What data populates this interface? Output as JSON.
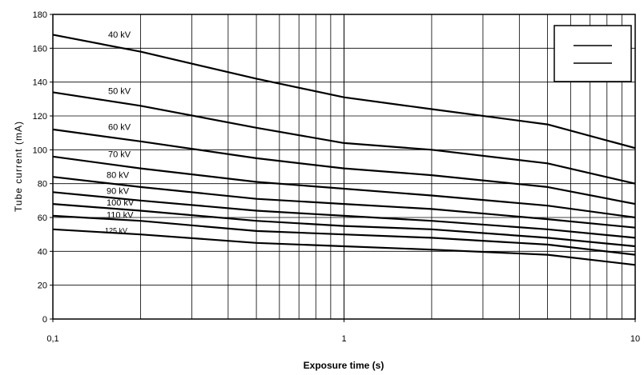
{
  "chart_data": {
    "type": "line",
    "xlabel": "Exposure time (s)",
    "ylabel": "Tube current (mA)",
    "xscale": "log",
    "xlim": [
      0.1,
      10
    ],
    "ylim": [
      0,
      180
    ],
    "xticks": [
      0.1,
      1,
      10
    ],
    "xtick_labels": [
      "0,1",
      "1",
      "10"
    ],
    "yticks": [
      0,
      20,
      40,
      60,
      80,
      100,
      120,
      140,
      160,
      180
    ],
    "grid": "vertical log grid lines and horizontal lines at each y tick",
    "legend": "top-right box with two unlabeled line samples",
    "line_color": "#000000",
    "series": [
      {
        "name": "40 kV",
        "x": [
          0.1,
          0.2,
          0.5,
          1,
          2,
          5,
          10
        ],
        "y": [
          168,
          158,
          142,
          131,
          124,
          115,
          101
        ]
      },
      {
        "name": "50 kV",
        "x": [
          0.1,
          0.2,
          0.5,
          1,
          2,
          5,
          10
        ],
        "y": [
          134,
          126,
          113,
          104,
          100,
          92,
          80
        ]
      },
      {
        "name": "60 kV",
        "x": [
          0.1,
          0.2,
          0.5,
          1,
          2,
          5,
          10
        ],
        "y": [
          112,
          105,
          95,
          89,
          85,
          78,
          68
        ]
      },
      {
        "name": "70 kV",
        "x": [
          0.1,
          0.2,
          0.5,
          1,
          2,
          5,
          10
        ],
        "y": [
          96,
          89,
          81,
          77,
          73,
          67,
          60
        ]
      },
      {
        "name": "80 kV",
        "x": [
          0.1,
          0.2,
          0.5,
          1,
          2,
          5,
          10
        ],
        "y": [
          84,
          78,
          71,
          68,
          65,
          59,
          54
        ]
      },
      {
        "name": "90 kV",
        "x": [
          0.1,
          0.2,
          0.5,
          1,
          2,
          5,
          10
        ],
        "y": [
          75,
          70,
          64,
          61,
          58,
          53,
          48
        ]
      },
      {
        "name": "100 kV",
        "x": [
          0.1,
          0.2,
          0.5,
          1,
          2,
          5,
          10
        ],
        "y": [
          68,
          64,
          58,
          55,
          53,
          48,
          43
        ]
      },
      {
        "name": "110 kV",
        "x": [
          0.1,
          0.2,
          0.5,
          1,
          2,
          5,
          10
        ],
        "y": [
          61,
          58,
          52,
          50,
          48,
          44,
          38
        ]
      },
      {
        "name": "125 kV",
        "x": [
          0.1,
          0.2,
          0.5,
          1,
          2,
          5,
          10
        ],
        "y": [
          53,
          50,
          45,
          43,
          41,
          38,
          32
        ]
      }
    ]
  }
}
